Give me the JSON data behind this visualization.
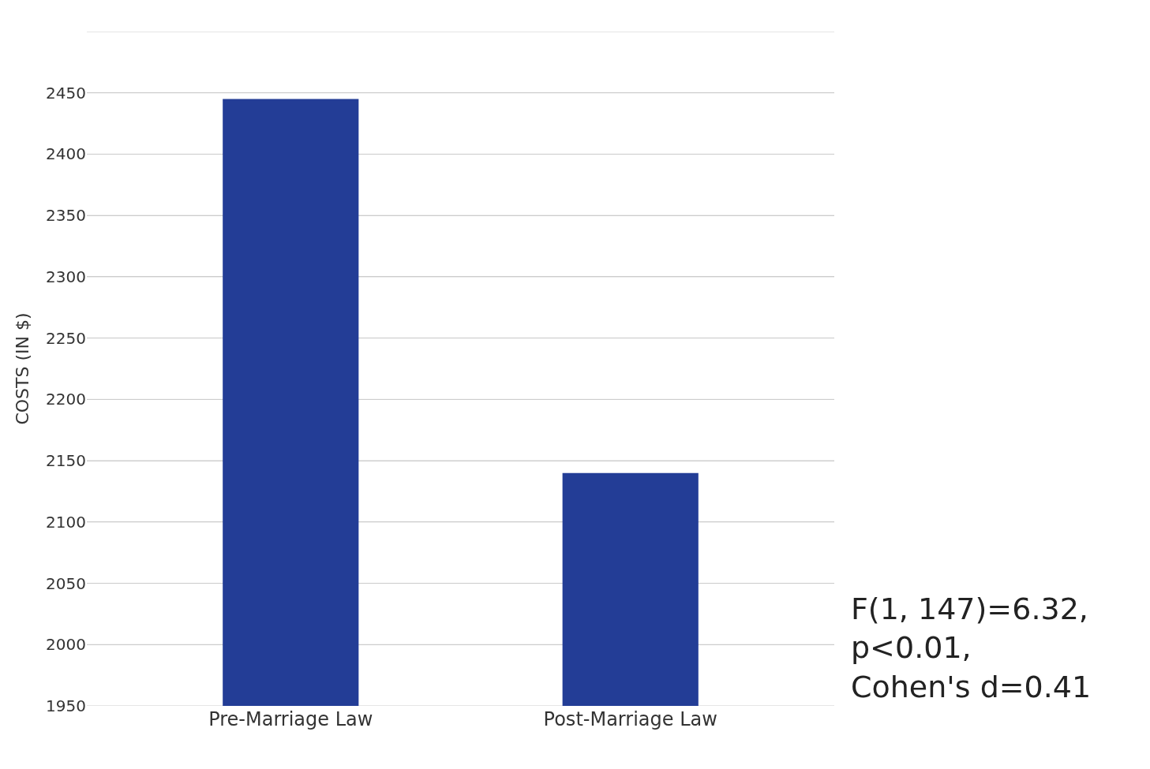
{
  "chart_data": {
    "type": "bar",
    "ylabel": "COSTS (IN $)",
    "categories": [
      "Pre-Marriage Law",
      "Post-Marriage Law"
    ],
    "values": [
      2445,
      2140
    ],
    "color": "#233d96",
    "ylim": [
      1950,
      2500
    ],
    "yticks": [
      1950,
      2000,
      2050,
      2100,
      2150,
      2200,
      2250,
      2300,
      2350,
      2400,
      2450,
      {
        "value": 2500,
        "label": null
      }
    ],
    "grid": "y",
    "annotations": [
      "F(1, 147)=6.32,\np<0.01,\nCohen's d=0.41"
    ]
  }
}
